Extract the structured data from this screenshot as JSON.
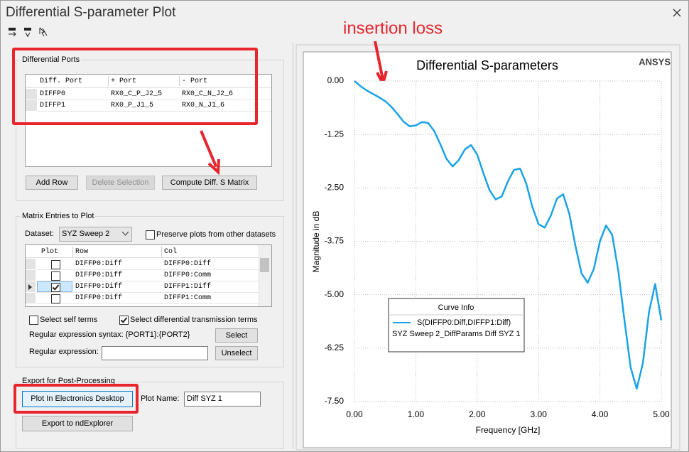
{
  "window": {
    "title": "Differential S-parameter Plot"
  },
  "annotation": "insertion loss",
  "ports": {
    "title": "Differential Ports",
    "columns": [
      "Diff. Port",
      "+ Port",
      "- Port"
    ],
    "rows": [
      [
        "DIFFP0",
        "RX0_C_P_J2_5",
        "RX0_C_N_J2_6"
      ],
      [
        "DIFFP1",
        "RX0_P_J1_5",
        "RX0_N_J1_6"
      ]
    ],
    "buttons": [
      "Add Row",
      "Delete Selection",
      "Compute Diff. S Matrix"
    ]
  },
  "matrix": {
    "title": "Matrix Entries to Plot",
    "dataset_label": "Dataset:",
    "dataset": "SYZ Sweep 2",
    "preserve": {
      "label": "Preserve plots from other datasets",
      "checked": false
    },
    "columns": [
      "Plot",
      "Row",
      "Col"
    ],
    "rows": [
      {
        "plot": false,
        "row": "DIFFP0:Diff",
        "col": "DIFFP0:Diff"
      },
      {
        "plot": false,
        "row": "DIFFP0:Diff",
        "col": "DIFFP0:Comm"
      },
      {
        "plot": true,
        "row": "DIFFP0:Diff",
        "col": "DIFFP1:Diff"
      },
      {
        "plot": false,
        "row": "DIFFP0:Diff",
        "col": "DIFFP1:Comm"
      }
    ],
    "self_terms": {
      "label": "Select self terms",
      "checked": false
    },
    "diff_terms": {
      "label": "Select differential transmission terms",
      "checked": true
    },
    "regex_syntax": "Regular expression syntax: {PORT1}:{PORT2}",
    "select": "Select",
    "regex_label": "Regular expression:",
    "unselect": "Unselect"
  },
  "export": {
    "title": "Export for Post-Processing",
    "plot_button": "Plot In Electronics Desktop",
    "plot_name_label": "Plot Name:",
    "plot_name": "Diff SYZ 1",
    "ndexplorer": "Export to ndExplorer"
  },
  "plot": {
    "type": "line",
    "title": "Differential S-parameters",
    "brand": "ANSYS",
    "xlabel": "Frequency [GHz]",
    "ylabel": "Magnitude in dB",
    "xlim": [
      0,
      5
    ],
    "ylim": [
      -7.5,
      0
    ],
    "xticks": [
      {
        "value": 0,
        "label": "0.00"
      },
      {
        "value": 1,
        "label": "1.00"
      },
      {
        "value": 2,
        "label": "2.00"
      },
      {
        "value": 3,
        "label": "3.00"
      },
      {
        "value": 4,
        "label": "4.00"
      },
      {
        "value": 5,
        "label": "5.00"
      }
    ],
    "yticks": [
      {
        "value": 0,
        "label": "0.00"
      },
      {
        "value": -1.25,
        "label": "-1.25"
      },
      {
        "value": -2.5,
        "label": "-2.50"
      },
      {
        "value": -3.75,
        "label": "-3.75"
      },
      {
        "value": -5,
        "label": "-5.00"
      },
      {
        "value": -6.25,
        "label": "-6.25"
      },
      {
        "value": -7.5,
        "label": "-7.50"
      }
    ],
    "grid": true,
    "legend": {
      "title": "Curve Info",
      "note": "SYZ Sweep 2_DiffParams Diff SYZ 1"
    },
    "series": [
      {
        "name": "S(DIFFP0:Diff,DIFFP1:Diff)",
        "color": "#1aa3e6",
        "x": [
          0,
          0.1,
          0.2,
          0.3,
          0.4,
          0.5,
          0.6,
          0.7,
          0.8,
          0.9,
          1.0,
          1.1,
          1.2,
          1.3,
          1.4,
          1.5,
          1.6,
          1.7,
          1.8,
          1.9,
          2.0,
          2.1,
          2.2,
          2.3,
          2.4,
          2.5,
          2.6,
          2.7,
          2.8,
          2.9,
          3.0,
          3.1,
          3.2,
          3.3,
          3.4,
          3.5,
          3.6,
          3.7,
          3.8,
          3.9,
          4.0,
          4.1,
          4.2,
          4.3,
          4.4,
          4.5,
          4.6,
          4.7,
          4.8,
          4.9,
          5.0
        ],
        "values": [
          0,
          -0.12,
          -0.22,
          -0.3,
          -0.38,
          -0.47,
          -0.6,
          -0.77,
          -0.95,
          -1.06,
          -1.04,
          -0.96,
          -0.98,
          -1.17,
          -1.48,
          -1.82,
          -2.0,
          -1.85,
          -1.6,
          -1.5,
          -1.72,
          -2.15,
          -2.55,
          -2.77,
          -2.7,
          -2.35,
          -2.08,
          -2.05,
          -2.4,
          -2.95,
          -3.35,
          -3.43,
          -3.15,
          -2.75,
          -2.65,
          -3.1,
          -3.85,
          -4.5,
          -4.72,
          -4.4,
          -3.75,
          -3.38,
          -3.6,
          -4.45,
          -5.6,
          -6.7,
          -7.2,
          -6.6,
          -5.4,
          -4.75,
          -5.6
        ]
      }
    ]
  }
}
